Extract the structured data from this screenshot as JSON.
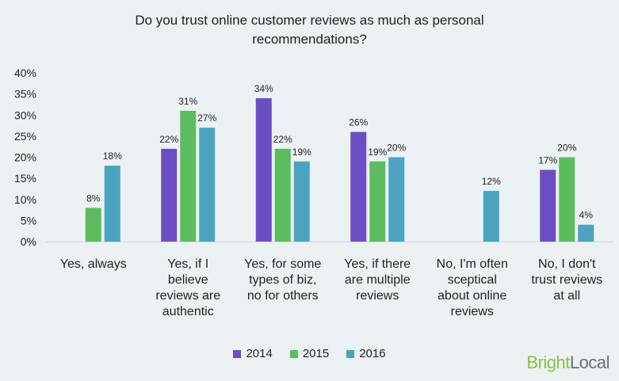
{
  "title_lines": [
    "Do you trust online customer reviews as much as personal",
    "recommendations?"
  ],
  "brand": {
    "part1": "Bright",
    "part2": "Local"
  },
  "colors": {
    "2014": "#6a4fc2",
    "2015": "#5bbd5d",
    "2016": "#4ba3bf"
  },
  "chart_data": {
    "type": "bar",
    "title": "Do you trust online customer reviews as much as personal recommendations?",
    "categories": [
      "Yes, always",
      "Yes, if I believe reviews are authentic",
      "Yes, for some types of biz, no for others",
      "Yes, if there are multiple reviews",
      "No, I'm often sceptical about online reviews",
      "No, I don't trust reviews at all"
    ],
    "category_lines": [
      [
        "Yes, always"
      ],
      [
        "Yes, if I",
        "believe",
        "reviews are",
        "authentic"
      ],
      [
        "Yes, for some",
        "types of biz,",
        "no for others"
      ],
      [
        "Yes, if there",
        "are multiple",
        "reviews"
      ],
      [
        "No, I'm often",
        "sceptical",
        "about online",
        "reviews"
      ],
      [
        "No, I don't",
        "trust reviews",
        "at all"
      ]
    ],
    "series": [
      {
        "name": "2014",
        "values": [
          null,
          22,
          34,
          26,
          null,
          17
        ],
        "labels": [
          "",
          "22%",
          "34%",
          "26%",
          "",
          "17%"
        ]
      },
      {
        "name": "2015",
        "values": [
          8,
          31,
          22,
          19,
          null,
          20
        ],
        "labels": [
          "8%",
          "31%",
          "22%",
          "19%",
          "",
          "20%"
        ]
      },
      {
        "name": "2016",
        "values": [
          18,
          27,
          19,
          20,
          12,
          4
        ],
        "labels": [
          "18%",
          "27%",
          "19%",
          "20%",
          "12%",
          "4%"
        ]
      }
    ],
    "ylim": [
      0,
      40
    ],
    "yticks": [
      0,
      5,
      10,
      15,
      20,
      25,
      30,
      35,
      40
    ],
    "ytick_labels": [
      "0%",
      "5%",
      "10%",
      "15%",
      "20%",
      "25%",
      "30%",
      "35%",
      "40%"
    ],
    "grid": false,
    "legend": "bottom"
  }
}
